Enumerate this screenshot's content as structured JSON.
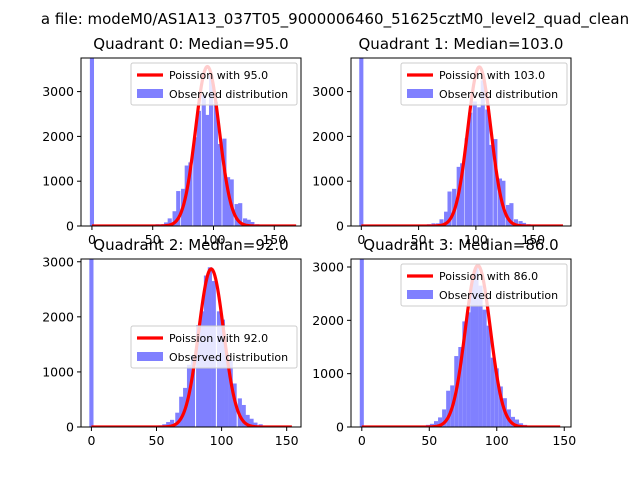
{
  "figure": {
    "suptitle": "a file: modeM0/AS1A13_037T05_9000006460_51625cztM0_level2_quad_clean"
  },
  "colors": {
    "poisson_line": "#ff0000",
    "histogram": "#8080ff",
    "histogram_alpha": 0.5
  },
  "chart_data": [
    {
      "type": "bar",
      "title": "Quadrant 0: Median=95.0",
      "xlim": [
        -9,
        172
      ],
      "ylim": [
        0,
        3750
      ],
      "xticks": [
        0,
        50,
        100,
        150
      ],
      "yticks": [
        0,
        1000,
        2000,
        3000
      ],
      "bin_width": 3.4,
      "legend_location": "upper right",
      "legend": [
        "Poission with 95.0",
        "Observed distribution"
      ],
      "poisson_mean": 95.0,
      "poisson_peak": 3560,
      "poisson_xrange": [
        0,
        168
      ],
      "histogram": {
        "bin_centers": [
          0,
          54,
          58,
          61,
          64,
          68,
          71,
          75,
          78,
          81,
          85,
          88,
          92,
          95,
          98,
          102,
          105,
          109,
          112,
          115,
          119,
          122,
          126,
          129,
          132,
          136,
          139,
          143
        ],
        "counts": [
          3750,
          40,
          40,
          80,
          170,
          330,
          780,
          830,
          1350,
          1420,
          1980,
          2570,
          2920,
          2480,
          3370,
          2770,
          1830,
          1950,
          1090,
          1040,
          490,
          510,
          170,
          140,
          90,
          40,
          25,
          10
        ]
      }
    },
    {
      "type": "bar",
      "title": "Quadrant 1: Median=103.0",
      "xlim": [
        -9,
        183
      ],
      "ylim": [
        0,
        3750
      ],
      "xticks": [
        0,
        50,
        100,
        150
      ],
      "yticks": [
        0,
        1000,
        2000,
        3000
      ],
      "bin_width": 3.6,
      "legend_location": "upper right",
      "legend": [
        "Poission with 103.0",
        "Observed distribution"
      ],
      "poisson_mean": 103.0,
      "poisson_peak": 3550,
      "poisson_xrange": [
        0,
        176
      ],
      "histogram": {
        "bin_centers": [
          0,
          59,
          63,
          67,
          70,
          74,
          77,
          81,
          85,
          88,
          92,
          95,
          99,
          103,
          106,
          110,
          113,
          117,
          121,
          124,
          128,
          131,
          135,
          139,
          142,
          146,
          149
        ],
        "counts": [
          3750,
          40,
          60,
          60,
          150,
          320,
          770,
          830,
          1320,
          1400,
          1960,
          2530,
          2780,
          2650,
          3250,
          2600,
          1810,
          1940,
          1060,
          1010,
          470,
          510,
          150,
          110,
          70,
          40,
          20
        ]
      }
    },
    {
      "type": "bar",
      "title": "Quadrant 2: Median=92.0",
      "xlim": [
        -8,
        161
      ],
      "ylim": [
        0,
        3050
      ],
      "xticks": [
        0,
        50,
        100,
        150
      ],
      "yticks": [
        0,
        1000,
        2000,
        3000
      ],
      "bin_width": 3.2,
      "legend_location": "center right",
      "legend": [
        "Poission with 92.0",
        "Observed distribution"
      ],
      "poisson_mean": 92.0,
      "poisson_peak": 2870,
      "poisson_xrange": [
        0,
        154
      ],
      "histogram": {
        "bin_centers": [
          0,
          53,
          56,
          59,
          62,
          66,
          69,
          72,
          75,
          78,
          82,
          85,
          88,
          91,
          94,
          98,
          101,
          104,
          107,
          110,
          114,
          117,
          120,
          123,
          126,
          130,
          133,
          136
        ],
        "counts": [
          3050,
          30,
          50,
          90,
          130,
          260,
          550,
          710,
          1130,
          1300,
          1850,
          2100,
          2750,
          2900,
          2650,
          2100,
          1950,
          1340,
          1200,
          790,
          520,
          400,
          220,
          150,
          80,
          50,
          25,
          10
        ]
      }
    },
    {
      "type": "bar",
      "title": "Quadrant 3: Median=86.0",
      "xlim": [
        -8,
        155
      ],
      "ylim": [
        0,
        3150
      ],
      "xticks": [
        0,
        50,
        100,
        150
      ],
      "yticks": [
        0,
        1000,
        2000,
        3000
      ],
      "bin_width": 3.0,
      "legend_location": "upper right",
      "legend": [
        "Poission with 86.0",
        "Observed distribution"
      ],
      "poisson_mean": 86.0,
      "poisson_peak": 3030,
      "poisson_xrange": [
        0,
        147
      ],
      "histogram": {
        "bin_centers": [
          0,
          49,
          52,
          55,
          58,
          61,
          64,
          67,
          70,
          73,
          76,
          79,
          82,
          85,
          88,
          91,
          94,
          97,
          100,
          103,
          106,
          109,
          112,
          115,
          118,
          121,
          124
        ],
        "counts": [
          3150,
          40,
          60,
          110,
          180,
          330,
          680,
          780,
          1330,
          1500,
          1980,
          2150,
          2750,
          3000,
          2650,
          2200,
          1900,
          1300,
          1100,
          760,
          540,
          330,
          190,
          140,
          70,
          40,
          20
        ]
      }
    }
  ]
}
